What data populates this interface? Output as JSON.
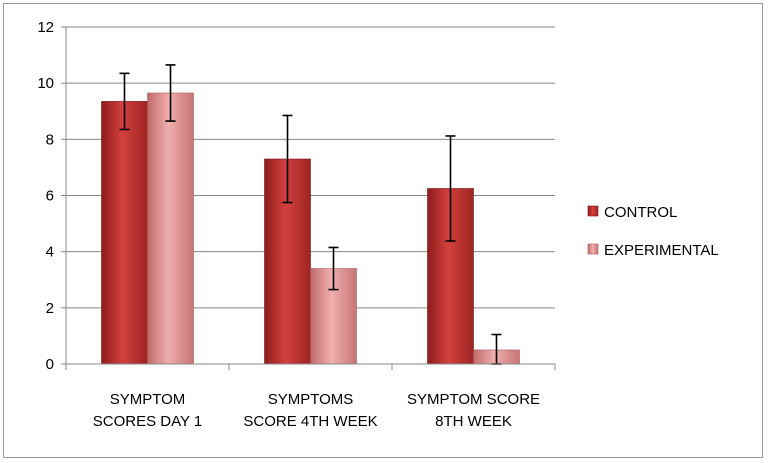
{
  "chart_data": {
    "type": "bar",
    "categories": [
      [
        "SYMPTOM",
        "SCORES DAY 1"
      ],
      [
        "SYMPTOMS",
        "SCORE 4TH WEEK"
      ],
      [
        "SYMPTOM SCORE",
        "8TH WEEK"
      ]
    ],
    "series": [
      {
        "name": "CONTROL",
        "values": [
          9.35,
          7.3,
          6.25
        ],
        "error": [
          1.0,
          1.55,
          1.87
        ],
        "color": "#c0302f"
      },
      {
        "name": "EXPERIMENTAL",
        "values": [
          9.65,
          3.4,
          0.5
        ],
        "error": [
          1.0,
          0.75,
          0.55
        ],
        "color": "#e08b8b"
      }
    ],
    "ylim": [
      0,
      12
    ],
    "yticks": [
      0,
      2,
      4,
      6,
      8,
      10,
      12
    ],
    "grid": true,
    "legend": "right",
    "title": "",
    "xlabel": "",
    "ylabel": ""
  }
}
